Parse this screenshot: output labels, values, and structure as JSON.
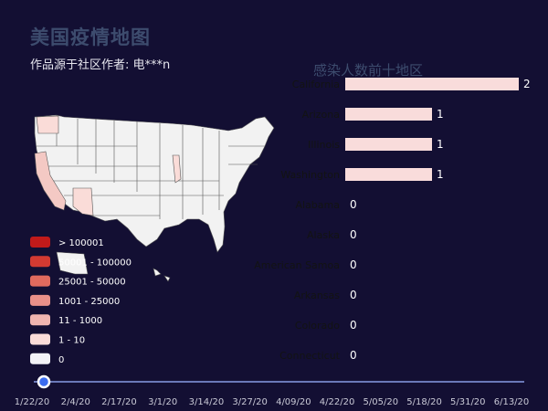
{
  "header": {
    "title": "美国疫情地图",
    "subtitle": "作品源于社区作者: 电***n"
  },
  "bar_chart_title": "感染人数前十地区",
  "legend": {
    "items": [
      {
        "label": "> 100001",
        "color": "#c11a1a"
      },
      {
        "label": "50001 - 100000",
        "color": "#d33a32"
      },
      {
        "label": "25001 - 50000",
        "color": "#e06a5e"
      },
      {
        "label": "1001 - 25000",
        "color": "#e99089"
      },
      {
        "label": "11 - 1000",
        "color": "#f0b5b0"
      },
      {
        "label": "1 - 10",
        "color": "#fadcd8"
      },
      {
        "label": "0",
        "color": "#f2f2f6"
      }
    ]
  },
  "map": {
    "highlighted_states": [
      {
        "name": "California",
        "color": "#f4c9c4"
      },
      {
        "name": "Arizona",
        "color": "#fadcd8"
      },
      {
        "name": "Illinois",
        "color": "#fadcd8"
      },
      {
        "name": "Washington",
        "color": "#fadcd8"
      }
    ],
    "base_color": "#f2f2f2",
    "border_color": "#555555"
  },
  "timeline": {
    "labels": [
      "1/22/20",
      "2/4/20",
      "2/17/20",
      "3/1/20",
      "3/14/20",
      "3/27/20",
      "4/09/20",
      "4/22/20",
      "5/05/20",
      "5/18/20",
      "5/31/20",
      "6/13/20"
    ],
    "current_index": 0,
    "accent": "#3b6cf0"
  },
  "chart_data": {
    "type": "bar",
    "orientation": "horizontal",
    "title": "感染人数前十地区",
    "categories": [
      "California",
      "Arizona",
      "Illinois",
      "Washington",
      "Alabama",
      "Alaska",
      "American Samoa",
      "Arkansas",
      "Colorado",
      "Connecticut"
    ],
    "values": [
      2,
      1,
      1,
      1,
      0,
      0,
      0,
      0,
      0,
      0
    ],
    "bar_color": "#f9dcdb",
    "xlim": [
      0,
      2
    ]
  }
}
